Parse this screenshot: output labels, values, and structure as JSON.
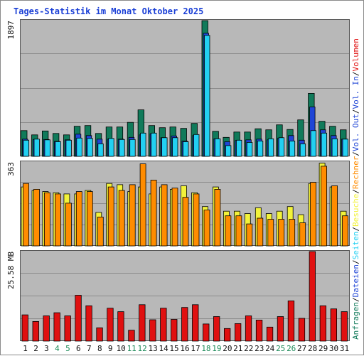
{
  "title": "Tages-Statistik im Monat Oktober 2025",
  "colors": {
    "anfragen": "#107a5a",
    "dateien": "#1f45d6",
    "seiten": "#22d0f2",
    "besuche": "#f2f23a",
    "rechner": "#ff8c00",
    "volumen": "#e01010",
    "panel_bg": "#b8b8b8",
    "weekday_label": "#111111",
    "weekend_label": "#1e8c5a",
    "legend_sep": "#111111"
  },
  "chart_data": [
    {
      "type": "bar",
      "categories": [
        "1",
        "2",
        "3",
        "4",
        "5",
        "6",
        "7",
        "8",
        "9",
        "10",
        "11",
        "12",
        "13",
        "14",
        "15",
        "16",
        "17",
        "18",
        "19",
        "20",
        "21",
        "22",
        "23",
        "24",
        "25",
        "26",
        "27",
        "28",
        "29",
        "30",
        "31"
      ],
      "weekend_days": [
        "4",
        "5",
        "11",
        "12",
        "18",
        "19",
        "25",
        "26"
      ],
      "ymax_label": "1897",
      "ylim": [
        0,
        1897
      ],
      "series": [
        {
          "name": "Anfragen",
          "key": "anfragen",
          "values": [
            360,
            300,
            355,
            320,
            300,
            420,
            430,
            320,
            410,
            410,
            475,
            650,
            430,
            400,
            410,
            390,
            460,
            1897,
            350,
            265,
            340,
            340,
            385,
            370,
            440,
            375,
            510,
            880,
            490,
            420,
            370
          ]
        },
        {
          "name": "Dateien",
          "key": "dateien",
          "values": [
            240,
            235,
            235,
            210,
            230,
            310,
            290,
            240,
            240,
            240,
            265,
            300,
            315,
            260,
            285,
            215,
            290,
            1720,
            245,
            205,
            220,
            230,
            240,
            230,
            255,
            290,
            225,
            690,
            370,
            290,
            240
          ]
        },
        {
          "name": "Seiten",
          "key": "seiten",
          "values": [
            225,
            240,
            230,
            205,
            225,
            255,
            250,
            175,
            250,
            235,
            235,
            325,
            325,
            260,
            260,
            205,
            305,
            1690,
            245,
            150,
            225,
            195,
            215,
            245,
            260,
            215,
            175,
            360,
            325,
            245,
            240
          ]
        }
      ]
    },
    {
      "type": "bar",
      "categories": [
        "1",
        "2",
        "3",
        "4",
        "5",
        "6",
        "7",
        "8",
        "9",
        "10",
        "11",
        "12",
        "13",
        "14",
        "15",
        "16",
        "17",
        "18",
        "19",
        "20",
        "21",
        "22",
        "23",
        "24",
        "25",
        "26",
        "27",
        "28",
        "29",
        "30",
        "31"
      ],
      "ymax_label": "363",
      "ylim": [
        0,
        363
      ],
      "series": [
        {
          "name": "Besuche",
          "key": "besuche",
          "values": [
            255,
            240,
            235,
            230,
            225,
            225,
            240,
            145,
            270,
            265,
            235,
            255,
            225,
            255,
            245,
            260,
            230,
            170,
            255,
            150,
            150,
            140,
            165,
            140,
            150,
            170,
            135,
            270,
            358,
            255,
            150
          ]
        },
        {
          "name": "Rechner",
          "key": "rechner",
          "values": [
            270,
            245,
            230,
            225,
            185,
            235,
            235,
            125,
            255,
            240,
            265,
            355,
            285,
            265,
            250,
            210,
            225,
            155,
            245,
            130,
            130,
            95,
            120,
            115,
            115,
            115,
            100,
            275,
            345,
            260,
            130
          ]
        }
      ]
    },
    {
      "type": "bar",
      "categories": [
        "1",
        "2",
        "3",
        "4",
        "5",
        "6",
        "7",
        "8",
        "9",
        "10",
        "11",
        "12",
        "13",
        "14",
        "15",
        "16",
        "17",
        "18",
        "19",
        "20",
        "21",
        "22",
        "23",
        "24",
        "25",
        "26",
        "27",
        "28",
        "29",
        "30",
        "31"
      ],
      "ymax_label": "25.58 MB",
      "ylim": [
        0,
        25.58
      ],
      "series": [
        {
          "name": "Volumen",
          "key": "volumen",
          "values": [
            7.5,
            5.6,
            7.2,
            8.1,
            7.2,
            13.1,
            10.1,
            3.8,
            9.4,
            8.4,
            3.1,
            10.4,
            6.1,
            9.4,
            6.2,
            9.6,
            10.4,
            4.9,
            7.0,
            3.6,
            5.0,
            7.2,
            6.0,
            4.0,
            7.0,
            11.5,
            6.5,
            25.58,
            10.1,
            9.2,
            8.4
          ]
        }
      ]
    }
  ],
  "legend": [
    {
      "label": "Anfragen",
      "key": "anfragen"
    },
    {
      "label": "Dateien",
      "key": "dateien"
    },
    {
      "label": "Seiten",
      "key": "seiten"
    },
    {
      "label": "Besuche",
      "key": "besuche"
    },
    {
      "label": "Rechner",
      "key": "rechner"
    },
    {
      "label": "Vol. Out",
      "key": "dateien"
    },
    {
      "label": "Vol. In",
      "key": "dateien"
    },
    {
      "label": "Volumen",
      "key": "volumen"
    }
  ]
}
